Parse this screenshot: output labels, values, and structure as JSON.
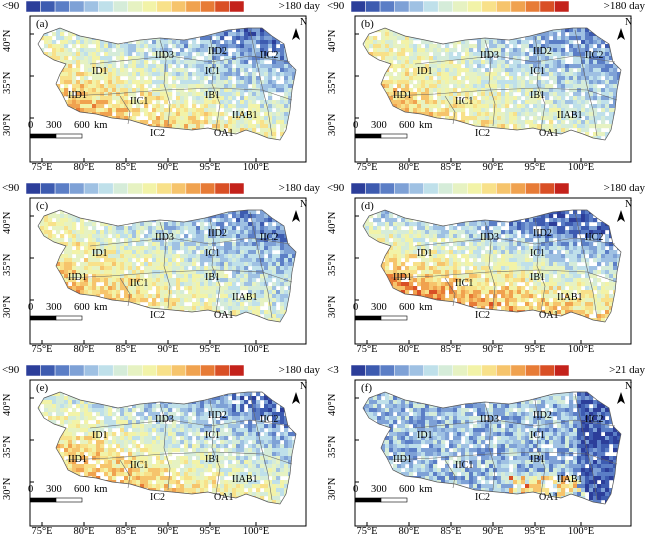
{
  "panels": [
    {
      "label": "(a)",
      "legend_min": "<90",
      "legend_max": ">180 day",
      "scheme": "long",
      "hot": 0.55
    },
    {
      "label": "(b)",
      "legend_min": "<90",
      "legend_max": ">180 day",
      "scheme": "long",
      "hot": 0.35
    },
    {
      "label": "(c)",
      "legend_min": "<90",
      "legend_max": ">180 day",
      "scheme": "long",
      "hot": 0.4
    },
    {
      "label": "(d)",
      "legend_min": "<90",
      "legend_max": ">180 day",
      "scheme": "long",
      "hot": 0.85
    },
    {
      "label": "(e)",
      "legend_min": "<90",
      "legend_max": ">180 day",
      "scheme": "long",
      "hot": 0.55
    },
    {
      "label": "(f)",
      "legend_min": "<3",
      "legend_max": ">21 day",
      "scheme": "short",
      "hot": 0.3
    }
  ],
  "x_ticks": [
    "75°E",
    "80°E",
    "85°E",
    "90°E",
    "95°E",
    "100°E"
  ],
  "y_ticks": [
    "40°N",
    "35°N",
    "30°N"
  ],
  "scale": {
    "zero": "0",
    "mid": "300",
    "end": "600",
    "unit": "km"
  },
  "north": "N",
  "regions": [
    "IID3",
    "IID2",
    "IIC2",
    "ID1",
    "IC1",
    "IID1",
    "IIC1",
    "IB1",
    "IIAB1",
    "IC2",
    "OA1"
  ],
  "colorbar_colors": [
    "#2c3e9a",
    "#3d5bb0",
    "#5b7ec6",
    "#7ea1d6",
    "#9fc1e3",
    "#bfe0ea",
    "#d5ecd9",
    "#e6f2c2",
    "#f2f3a8",
    "#f8e18a",
    "#f6c46c",
    "#f0a24f",
    "#e77b36",
    "#d94f25",
    "#c4221b"
  ]
}
